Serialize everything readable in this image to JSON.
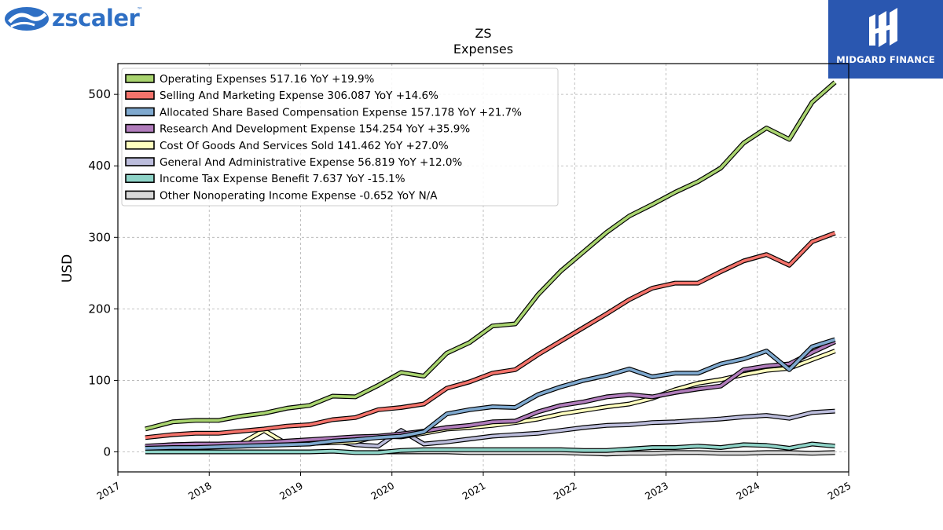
{
  "brand_left": {
    "name": "zscaler",
    "trademark": "™",
    "icon": "zscaler-cloud-logo-icon"
  },
  "brand_right": {
    "name": "MIDGARD FINANCE",
    "icon": "midgard-monogram-icon",
    "background": "#2a57b0"
  },
  "chart_data": {
    "type": "line",
    "title": "ZS",
    "subtitle": "Expenses",
    "ylabel": "USD",
    "xlabel": "",
    "xlim": [
      2017.0,
      2025.0
    ],
    "ylim": [
      -28,
      543
    ],
    "yticks": [
      0,
      100,
      200,
      300,
      400,
      500
    ],
    "xticks": [
      "2017",
      "2018",
      "2019",
      "2020",
      "2021",
      "2022",
      "2023",
      "2024",
      "2025"
    ],
    "grid": true,
    "legend_position": "top-left",
    "x": [
      2017.3,
      2017.6,
      2017.85,
      2018.1,
      2018.35,
      2018.6,
      2018.85,
      2019.1,
      2019.35,
      2019.6,
      2019.85,
      2020.1,
      2020.35,
      2020.6,
      2020.85,
      2021.1,
      2021.35,
      2021.6,
      2021.85,
      2022.1,
      2022.35,
      2022.6,
      2022.85,
      2023.1,
      2023.35,
      2023.6,
      2023.85,
      2024.1,
      2024.35,
      2024.6,
      2024.85
    ],
    "series": [
      {
        "name": "Operating Expenses",
        "legend": "Operating Expenses  517.16 YoY +19.9%",
        "color": "#a9d46f",
        "values": [
          32,
          42,
          44,
          44,
          50,
          54,
          61,
          65,
          78,
          77,
          93,
          111,
          106,
          138,
          153,
          176,
          179,
          220,
          253,
          280,
          307,
          330,
          346,
          363,
          378,
          397,
          432,
          453,
          437,
          489,
          517
        ]
      },
      {
        "name": "Selling And Marketing Expense",
        "legend": "Selling And Marketing Expense  306.087 YoY +14.6%",
        "color": "#f4736b",
        "values": [
          20,
          24,
          26,
          26,
          29,
          32,
          36,
          38,
          45,
          48,
          59,
          62,
          67,
          89,
          98,
          110,
          115,
          136,
          155,
          174,
          193,
          213,
          229,
          236,
          236,
          252,
          267,
          276,
          261,
          294,
          306
        ]
      },
      {
        "name": "Allocated Share Based Compensation Expense",
        "legend": "Allocated Share Based Compensation Expense  157.178 YoY +21.7%",
        "color": "#7fa9cf",
        "values": [
          5,
          6,
          6,
          7,
          8,
          9,
          10,
          11,
          15,
          17,
          20,
          22,
          28,
          53,
          59,
          63,
          62,
          80,
          91,
          100,
          107,
          116,
          105,
          110,
          110,
          123,
          130,
          141,
          115,
          147,
          157
        ]
      },
      {
        "name": "Research And Development Expense",
        "legend": "Research And Development Expense  154.254 YoY +35.9%",
        "color": "#b07cbb",
        "values": [
          8,
          10,
          11,
          11,
          12,
          13,
          15,
          17,
          19,
          21,
          22,
          25,
          29,
          34,
          37,
          42,
          43,
          56,
          65,
          70,
          77,
          80,
          77,
          83,
          88,
          92,
          115,
          120,
          123,
          139,
          154
        ]
      },
      {
        "name": "Cost Of Goods And Services Sold",
        "legend": "Cost Of Goods And Services Sold  141.462 YoY +27.0%",
        "color": "#ffffbf",
        "values": [
          6,
          8,
          9,
          10,
          12,
          30,
          11,
          12,
          13,
          14,
          22,
          21,
          26,
          32,
          34,
          37,
          41,
          46,
          53,
          58,
          63,
          67,
          75,
          87,
          96,
          101,
          108,
          114,
          117,
          129,
          141
        ]
      },
      {
        "name": "General And Administrative Expense",
        "legend": "General And Administrative Expense  56.819 YoY +12.0%",
        "color": "#bcbddc",
        "values": [
          7,
          10,
          10,
          10,
          10,
          11,
          12,
          12,
          16,
          10,
          8,
          30,
          11,
          14,
          18,
          22,
          24,
          26,
          30,
          34,
          37,
          38,
          41,
          42,
          44,
          46,
          49,
          51,
          47,
          55,
          57
        ]
      },
      {
        "name": "Income Tax Expense Benefit",
        "legend": "Income Tax Expense Benefit  7.637 YoY -15.1%",
        "color": "#8ed3c7",
        "values": [
          0,
          0,
          0,
          0,
          0,
          0,
          0,
          0,
          1,
          -1,
          -1,
          2,
          3,
          3,
          3,
          3,
          3,
          3,
          3,
          2,
          2,
          4,
          6,
          6,
          8,
          6,
          10,
          9,
          5,
          11,
          8
        ]
      },
      {
        "name": "Other Nonoperating Income Expense",
        "legend": "Other Nonoperating Income Expense  -0.652 YoY N/A",
        "color": "#d9d9d9",
        "values": [
          null,
          null,
          null,
          null,
          null,
          null,
          null,
          null,
          null,
          null,
          0,
          0,
          0,
          0,
          -1,
          -1,
          -1,
          -1,
          -1,
          -2,
          -3,
          -2,
          -2,
          -1,
          -1,
          -2,
          -2,
          -1,
          -1,
          -2,
          -1
        ]
      }
    ]
  }
}
